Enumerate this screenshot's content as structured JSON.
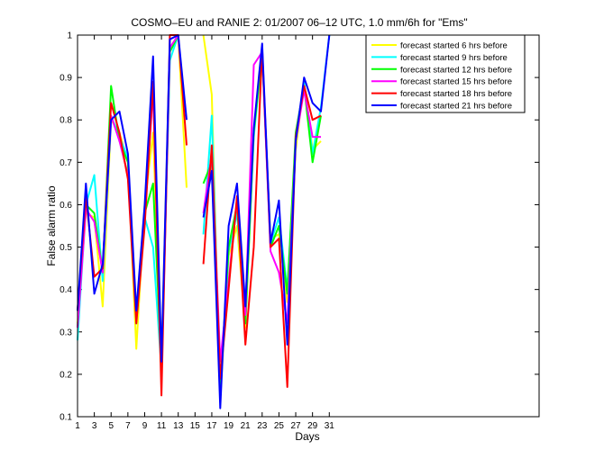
{
  "chart_data": {
    "type": "line",
    "title": "COSMO–EU and RANIE 2: 01/2007 06–12 UTC, 1.0 mm/6h for \"Ems\"",
    "xlabel": "Days",
    "ylabel": "False alarm ratio",
    "xlim": [
      1,
      56
    ],
    "ylim": [
      0.1,
      1.0
    ],
    "xticks": [
      1,
      3,
      5,
      7,
      9,
      11,
      13,
      15,
      17,
      19,
      21,
      23,
      25,
      27,
      29,
      31
    ],
    "yticks": [
      0.1,
      0.2,
      0.3,
      0.4,
      0.5,
      0.6,
      0.7,
      0.8,
      0.9,
      1
    ],
    "ytick_labels": [
      "0.1",
      "0.2",
      "0.3",
      "0.4",
      "0.5",
      "0.6",
      "0.7",
      "0.8",
      "0.9",
      "1"
    ],
    "legend_position": "top-right",
    "x": [
      1,
      2,
      3,
      4,
      5,
      6,
      7,
      8,
      9,
      10,
      11,
      12,
      13,
      14,
      15,
      16,
      17,
      18,
      19,
      20,
      21,
      22,
      23,
      24,
      25,
      26,
      27,
      28,
      29,
      30,
      31
    ],
    "series": [
      {
        "name": "forecast started 6 hrs before",
        "color": "#ffff00",
        "values": [
          0.32,
          0.58,
          0.57,
          0.36,
          0.8,
          0.77,
          0.7,
          0.26,
          0.6,
          0.77,
          0.24,
          0.97,
          1.0,
          0.64,
          null,
          1.0,
          0.86,
          0.14,
          0.48,
          0.55,
          0.31,
          0.77,
          0.95,
          0.52,
          0.53,
          0.37,
          0.73,
          0.89,
          0.73,
          0.75,
          null
        ]
      },
      {
        "name": "forecast started 9 hrs before",
        "color": "#00ffff",
        "values": [
          0.28,
          0.6,
          0.67,
          0.42,
          0.81,
          0.76,
          0.71,
          0.32,
          0.57,
          0.5,
          0.21,
          0.94,
          1.0,
          null,
          null,
          0.53,
          0.81,
          0.16,
          0.49,
          0.58,
          0.33,
          0.76,
          0.96,
          0.51,
          0.57,
          0.4,
          0.75,
          0.89,
          0.72,
          0.83,
          1.0
        ]
      },
      {
        "name": "forecast started 12 hrs before",
        "color": "#00ff00",
        "values": [
          0.31,
          0.6,
          0.58,
          0.44,
          0.88,
          0.75,
          0.7,
          0.33,
          0.58,
          0.65,
          0.22,
          0.96,
          1.0,
          null,
          null,
          0.65,
          0.7,
          0.16,
          0.5,
          0.6,
          0.32,
          0.77,
          0.96,
          0.5,
          0.55,
          0.39,
          0.77,
          0.88,
          0.7,
          0.81,
          null
        ]
      },
      {
        "name": "forecast started 15 hrs before",
        "color": "#ff00ff",
        "values": [
          0.31,
          0.59,
          0.56,
          0.44,
          0.81,
          0.75,
          0.67,
          0.34,
          0.57,
          0.87,
          0.19,
          0.97,
          1.0,
          null,
          null,
          0.58,
          0.72,
          0.23,
          0.42,
          0.61,
          0.34,
          0.93,
          0.96,
          0.49,
          0.44,
          0.32,
          0.75,
          0.87,
          0.76,
          0.76,
          null
        ]
      },
      {
        "name": "forecast started 18 hrs before",
        "color": "#ff0000",
        "values": [
          0.35,
          0.62,
          0.43,
          0.45,
          0.84,
          0.77,
          0.66,
          0.32,
          0.55,
          0.89,
          0.15,
          1.0,
          1.0,
          0.74,
          null,
          0.46,
          0.74,
          0.19,
          0.4,
          0.62,
          0.27,
          0.5,
          0.97,
          0.5,
          0.52,
          0.17,
          0.76,
          0.88,
          0.8,
          0.81,
          null
        ]
      },
      {
        "name": "forecast started 21 hrs before",
        "color": "#0000ff",
        "values": [
          0.35,
          0.65,
          0.39,
          0.46,
          0.8,
          0.82,
          0.72,
          0.35,
          0.6,
          0.95,
          0.23,
          0.99,
          1.0,
          0.8,
          null,
          0.57,
          0.68,
          0.12,
          0.55,
          0.65,
          0.36,
          0.78,
          0.98,
          0.51,
          0.61,
          0.27,
          0.75,
          0.9,
          0.84,
          0.82,
          1.0
        ]
      }
    ]
  }
}
